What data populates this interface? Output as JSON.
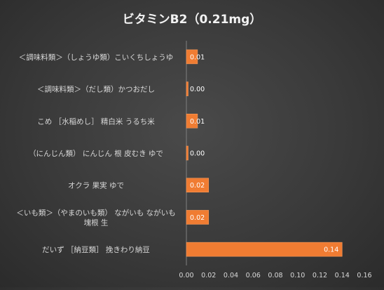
{
  "chart_data": {
    "type": "bar",
    "orientation": "horizontal",
    "title": "ビタミンB2（0.21mg）",
    "xlabel": "",
    "ylabel": "",
    "xlim": [
      0,
      0.16
    ],
    "x_ticks": [
      "0.00",
      "0.02",
      "0.04",
      "0.06",
      "0.08",
      "0.10",
      "0.12",
      "0.14",
      "0.16"
    ],
    "grid": false,
    "legend": "none",
    "categories": [
      [
        "＜調味料類＞（しょうゆ類）こいくちしょうゆ"
      ],
      [
        "＜調味料類＞（だし類）かつおだし"
      ],
      [
        "こめ ［水稲めし］ 精白米 うるち米"
      ],
      [
        "（にんじん類） にんじん 根 皮むき ゆで"
      ],
      [
        "オクラ 果実 ゆで"
      ],
      [
        "＜いも類＞（やまのいも類） ながいも ながいも",
        "塊根 生"
      ],
      [
        "だいず ［納豆類］ 挽きわり納豆"
      ]
    ],
    "values": [
      0.01,
      0.0,
      0.01,
      0.0,
      0.02,
      0.02,
      0.14
    ],
    "data_labels": [
      "0.01",
      "0.00",
      "0.01",
      "0.00",
      "0.02",
      "0.02",
      "0.14"
    ],
    "colors": {
      "bar": "#f07c32",
      "bar_edge": "#f59a5c",
      "label_text": "#ffffff",
      "axis_text": "#d9d9d9",
      "title_text": "#f2f2f2",
      "axis_line": "#7f7f7f"
    }
  }
}
